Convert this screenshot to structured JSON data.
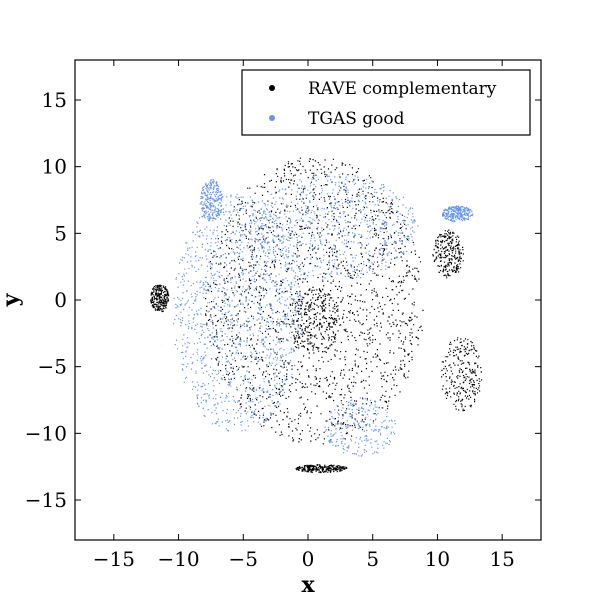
{
  "chart_data": {
    "type": "scatter",
    "title": "",
    "xlabel": "x",
    "ylabel": "y",
    "xlim": [
      -18,
      18
    ],
    "ylim": [
      -18,
      18
    ],
    "xticks": [
      -15,
      -10,
      -5,
      0,
      5,
      10,
      15
    ],
    "yticks": [
      -15,
      -10,
      -5,
      0,
      5,
      10,
      15
    ],
    "xtick_labels": [
      "−15",
      "−10",
      "−5",
      "0",
      "5",
      "10",
      "15"
    ],
    "ytick_labels": [
      "−15",
      "−10",
      "−5",
      "0",
      "5",
      "10",
      "15"
    ],
    "grid": false,
    "legend_position": "top-right",
    "series": [
      {
        "name": "RAVE complementary",
        "color": "#000000",
        "description_regions": [
          {
            "shape": "ellipse",
            "cx": 0.5,
            "cy": 0.0,
            "rx": 8.5,
            "ry": 10.8
          },
          {
            "shape": "ellipse",
            "cx": 0.5,
            "cy": -1.5,
            "rx": 2.0,
            "ry": 2.5
          },
          {
            "shape": "ellipse",
            "cx": 10.8,
            "cy": 3.5,
            "rx": 1.2,
            "ry": 1.8
          },
          {
            "shape": "ellipse",
            "cx": -11.5,
            "cy": 0.2,
            "rx": 0.7,
            "ry": 1.1
          },
          {
            "shape": "ellipse",
            "cx": 1.0,
            "cy": -12.6,
            "rx": 2.0,
            "ry": 0.3
          },
          {
            "shape": "ellipse",
            "cx": 11.8,
            "cy": -5.5,
            "rx": 1.6,
            "ry": 2.8
          }
        ]
      },
      {
        "name": "TGAS good",
        "color": "#6495ed",
        "description_regions": [
          {
            "shape": "ellipse",
            "cx": -5.5,
            "cy": -1.0,
            "rx": 5.0,
            "ry": 9.0
          },
          {
            "shape": "ellipse",
            "cx": 2.0,
            "cy": 5.5,
            "rx": 6.5,
            "ry": 4.0
          },
          {
            "shape": "ellipse",
            "cx": 4.0,
            "cy": -9.5,
            "rx": 2.8,
            "ry": 2.2
          },
          {
            "shape": "ellipse",
            "cx": 11.5,
            "cy": 6.5,
            "rx": 1.2,
            "ry": 0.6
          },
          {
            "shape": "ellipse",
            "cx": -7.5,
            "cy": 7.5,
            "rx": 0.9,
            "ry": 1.6
          }
        ]
      }
    ],
    "legend": [
      {
        "label": "RAVE complementary",
        "color": "#000000"
      },
      {
        "label": "TGAS good",
        "color": "#6495ed"
      }
    ]
  }
}
